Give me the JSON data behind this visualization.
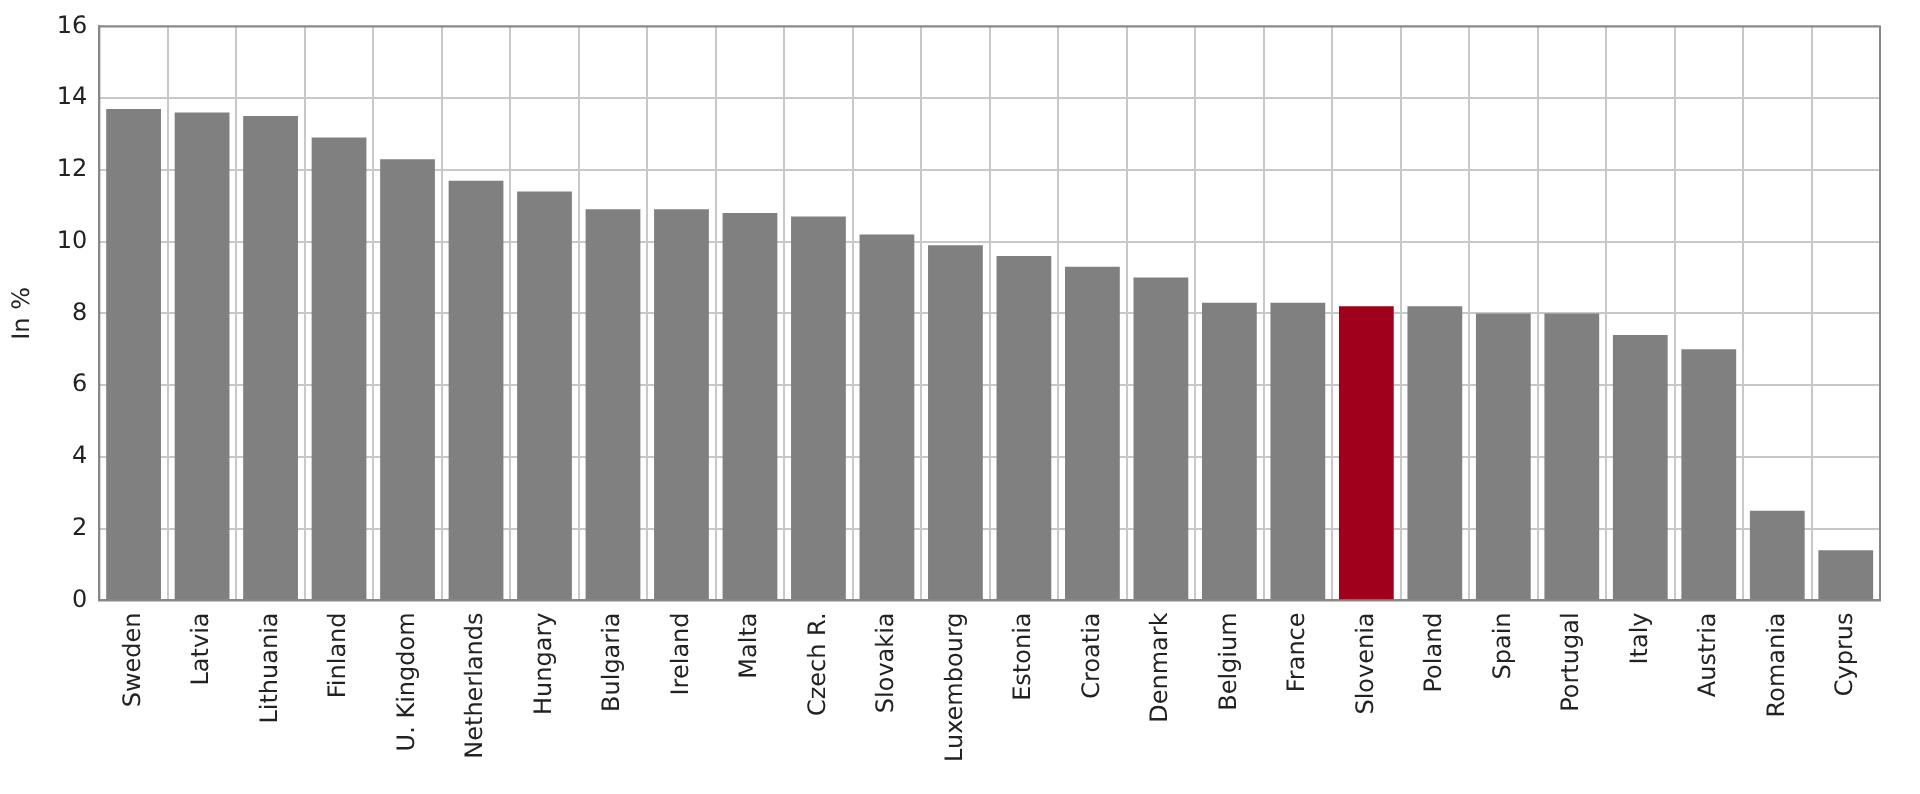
{
  "chart_data": {
    "type": "bar",
    "ylabel": "In %",
    "categories": [
      "Sweden",
      "Latvia",
      "Lithuania",
      "Finland",
      "U. Kingdom",
      "Netherlands",
      "Hungary",
      "Bulgaria",
      "Ireland",
      "Malta",
      "Czech R.",
      "Slovakia",
      "Luxembourg",
      "Estonia",
      "Croatia",
      "Denmark",
      "Belgium",
      "France",
      "Slovenia",
      "Poland",
      "Spain",
      "Portugal",
      "Italy",
      "Austria",
      "Romania",
      "Cyprus"
    ],
    "values": [
      13.7,
      13.6,
      13.5,
      12.9,
      12.3,
      11.7,
      11.4,
      10.9,
      10.9,
      10.8,
      10.7,
      10.2,
      9.9,
      9.6,
      9.3,
      9.0,
      8.3,
      8.3,
      8.2,
      8.2,
      8.0,
      8.0,
      7.4,
      7.0,
      2.5,
      1.4
    ],
    "colors": [
      "#808080",
      "#808080",
      "#808080",
      "#808080",
      "#808080",
      "#808080",
      "#808080",
      "#808080",
      "#808080",
      "#808080",
      "#808080",
      "#808080",
      "#808080",
      "#808080",
      "#808080",
      "#808080",
      "#808080",
      "#808080",
      "#a0001c",
      "#808080",
      "#808080",
      "#808080",
      "#808080",
      "#808080",
      "#808080",
      "#808080"
    ],
    "ylim": [
      0,
      16
    ],
    "yticks": [
      0,
      2,
      4,
      6,
      8,
      10,
      12,
      14,
      16
    ],
    "grid": true,
    "legend": false
  }
}
